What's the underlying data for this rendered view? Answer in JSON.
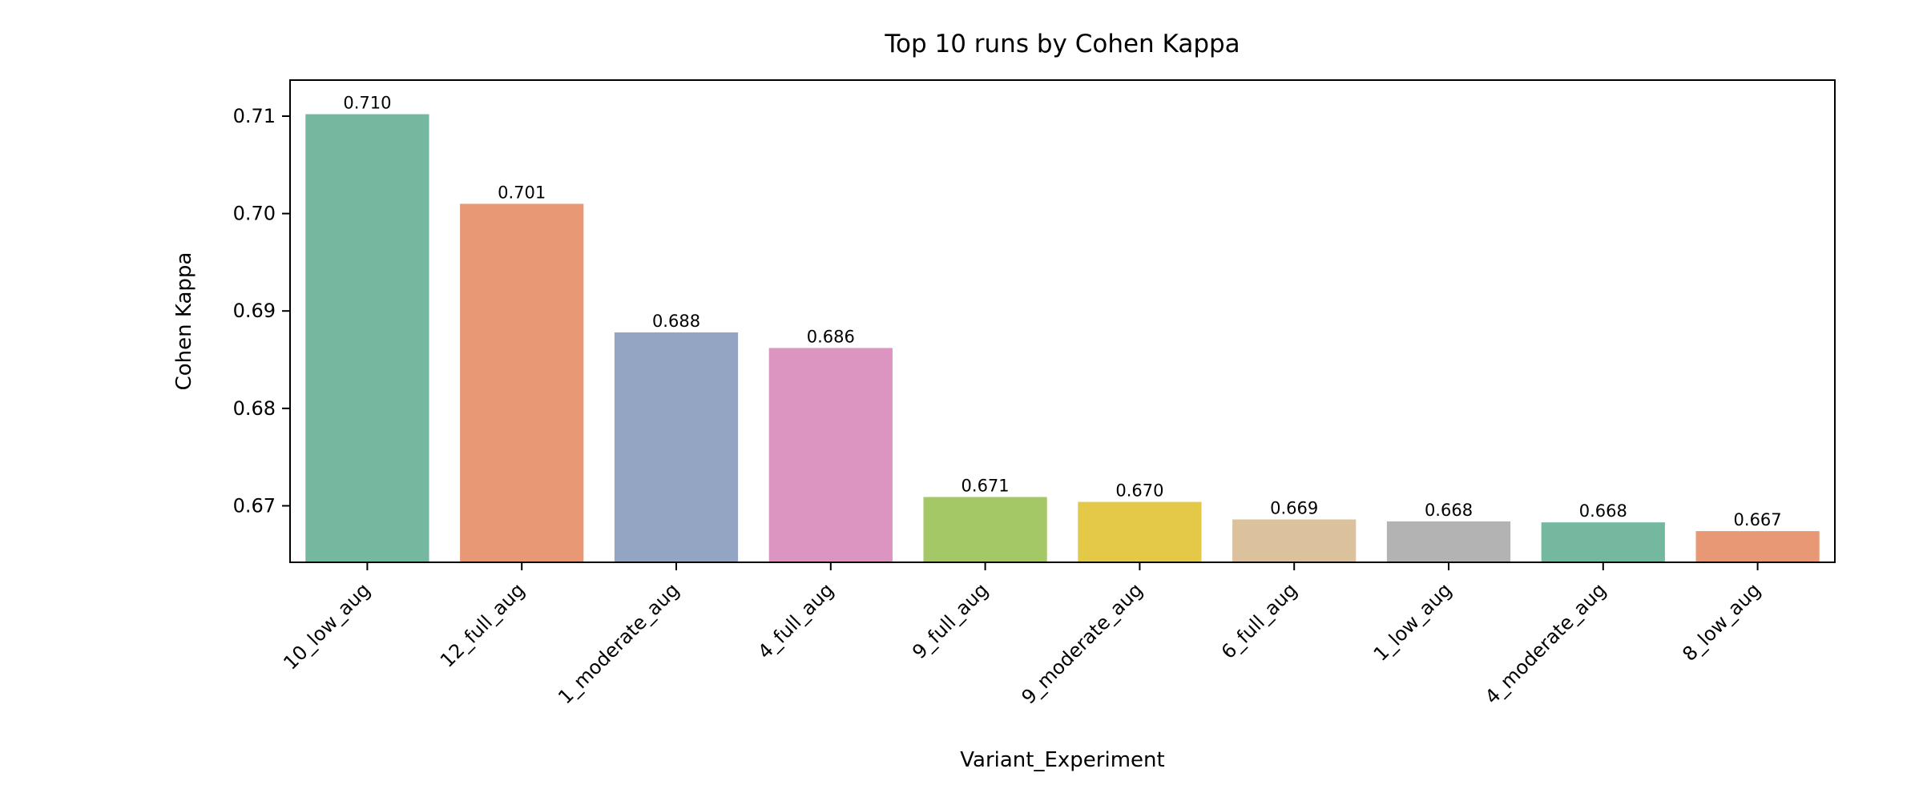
{
  "chart_data": {
    "type": "bar",
    "title": "Top 10 runs by Cohen Kappa",
    "xlabel": "Variant_Experiment",
    "ylabel": "Cohen Kappa",
    "categories": [
      "10_low_aug",
      "12_full_aug",
      "1_moderate_aug",
      "4_full_aug",
      "9_full_aug",
      "9_moderate_aug",
      "6_full_aug",
      "1_low_aug",
      "4_moderate_aug",
      "8_low_aug"
    ],
    "values": [
      0.7102,
      0.701,
      0.6878,
      0.6862,
      0.6709,
      0.6704,
      0.6686,
      0.6684,
      0.6683,
      0.6674
    ],
    "value_labels": [
      "0.710",
      "0.701",
      "0.688",
      "0.686",
      "0.671",
      "0.670",
      "0.669",
      "0.668",
      "0.668",
      "0.667"
    ],
    "colors": [
      "#74b8a0",
      "#e99875",
      "#94a4c3",
      "#dc94c0",
      "#a3c865",
      "#e4c948",
      "#dbc19c",
      "#b3b3b3",
      "#74b8a0",
      "#e99875"
    ],
    "ylim": [
      0.6642,
      0.7137
    ],
    "yticks": [
      0.67,
      0.68,
      0.69,
      0.7,
      0.71
    ],
    "ytick_labels": [
      "0.67",
      "0.68",
      "0.69",
      "0.70",
      "0.71"
    ],
    "grid": false,
    "legend": "none"
  }
}
